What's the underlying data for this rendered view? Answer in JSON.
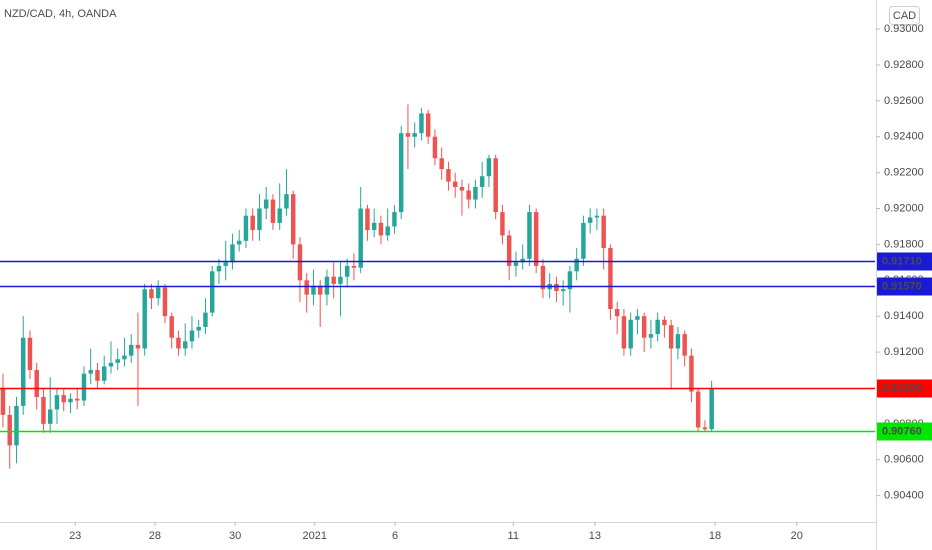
{
  "chart_data": {
    "type": "candlestick",
    "title": "NZD/CAD, 4h, OANDA",
    "currency": "CAD",
    "up_color": "#26a69a",
    "down_color": "#ef5350",
    "grid": false,
    "ylim": [
      0.90253,
      0.93162
    ],
    "yticks": [
      {
        "value": 0.904,
        "label": "0.90400"
      },
      {
        "value": 0.906,
        "label": "0.90600"
      },
      {
        "value": 0.908,
        "label": "0.90800"
      },
      {
        "value": 0.91,
        "label": "0.91000"
      },
      {
        "value": 0.912,
        "label": "0.91200"
      },
      {
        "value": 0.914,
        "label": "0.91400"
      },
      {
        "value": 0.916,
        "label": "0.91600"
      },
      {
        "value": 0.918,
        "label": "0.91800"
      },
      {
        "value": 0.92,
        "label": "0.92000"
      },
      {
        "value": 0.922,
        "label": "0.92200"
      },
      {
        "value": 0.924,
        "label": "0.92400"
      },
      {
        "value": 0.926,
        "label": "0.92600"
      },
      {
        "value": 0.928,
        "label": "0.92800"
      },
      {
        "value": 0.93,
        "label": "0.93000"
      }
    ],
    "xlim": [
      -0.44,
      129.2
    ],
    "xticks": [
      {
        "value": 10.7,
        "label": "23"
      },
      {
        "value": 22.5,
        "label": "28"
      },
      {
        "value": 34.4,
        "label": "30"
      },
      {
        "value": 46.2,
        "label": "2021"
      },
      {
        "value": 58.1,
        "label": "6"
      },
      {
        "value": 75.6,
        "label": "11"
      },
      {
        "value": 87.7,
        "label": "13"
      },
      {
        "value": 105.5,
        "label": "18"
      },
      {
        "value": 117.6,
        "label": "20"
      }
    ],
    "levels": [
      {
        "value": 0.9171,
        "label": "0.91710",
        "color": "#1a1ad6"
      },
      {
        "value": 0.9157,
        "label": "0.91570",
        "color": "#1a1ad6"
      },
      {
        "value": 0.91,
        "label": "0.91000",
        "color": "#ff0000"
      },
      {
        "value": 0.9076,
        "label": "0.90760",
        "color": "#00e600"
      }
    ],
    "candles": [
      [
        0.91,
        0.9108,
        0.9078,
        0.9085
      ],
      [
        0.9085,
        0.909,
        0.9055,
        0.9068
      ],
      [
        0.9068,
        0.9095,
        0.9058,
        0.909
      ],
      [
        0.909,
        0.914,
        0.9085,
        0.9128
      ],
      [
        0.9128,
        0.9132,
        0.9105,
        0.911
      ],
      [
        0.911,
        0.9114,
        0.9088,
        0.9095
      ],
      [
        0.9095,
        0.91,
        0.9075,
        0.908
      ],
      [
        0.908,
        0.9106,
        0.9075,
        0.9088
      ],
      [
        0.9088,
        0.91,
        0.908,
        0.9096
      ],
      [
        0.9096,
        0.91,
        0.9087,
        0.9092
      ],
      [
        0.9092,
        0.9097,
        0.9086,
        0.9094
      ],
      [
        0.9094,
        0.91,
        0.9088,
        0.9093
      ],
      [
        0.9093,
        0.9112,
        0.909,
        0.9108
      ],
      [
        0.9108,
        0.9122,
        0.9102,
        0.911
      ],
      [
        0.911,
        0.9114,
        0.91,
        0.9104
      ],
      [
        0.9104,
        0.9118,
        0.9102,
        0.9112
      ],
      [
        0.9112,
        0.9126,
        0.9108,
        0.9114
      ],
      [
        0.9114,
        0.9122,
        0.911,
        0.9116
      ],
      [
        0.9116,
        0.9128,
        0.9112,
        0.9118
      ],
      [
        0.9118,
        0.913,
        0.9114,
        0.9124
      ],
      [
        0.9124,
        0.9142,
        0.909,
        0.9122
      ],
      [
        0.9122,
        0.9158,
        0.9118,
        0.9155
      ],
      [
        0.9155,
        0.9158,
        0.9144,
        0.915
      ],
      [
        0.915,
        0.916,
        0.9146,
        0.9156
      ],
      [
        0.9156,
        0.9158,
        0.9136,
        0.914
      ],
      [
        0.914,
        0.9142,
        0.9122,
        0.9128
      ],
      [
        0.9128,
        0.9132,
        0.9118,
        0.9122
      ],
      [
        0.9122,
        0.9136,
        0.9118,
        0.9126
      ],
      [
        0.9126,
        0.914,
        0.9122,
        0.9132
      ],
      [
        0.9132,
        0.9138,
        0.9128,
        0.9134
      ],
      [
        0.9134,
        0.915,
        0.913,
        0.9142
      ],
      [
        0.9142,
        0.9168,
        0.914,
        0.9165
      ],
      [
        0.9165,
        0.9172,
        0.9158,
        0.9168
      ],
      [
        0.9168,
        0.9182,
        0.916,
        0.917
      ],
      [
        0.917,
        0.9186,
        0.9166,
        0.918
      ],
      [
        0.918,
        0.9188,
        0.9176,
        0.9182
      ],
      [
        0.9182,
        0.92,
        0.9178,
        0.9196
      ],
      [
        0.9196,
        0.92,
        0.9182,
        0.9188
      ],
      [
        0.9188,
        0.9208,
        0.9182,
        0.92
      ],
      [
        0.92,
        0.9212,
        0.9194,
        0.9205
      ],
      [
        0.9205,
        0.9208,
        0.9188,
        0.9192
      ],
      [
        0.9192,
        0.9214,
        0.9188,
        0.92
      ],
      [
        0.92,
        0.9222,
        0.9196,
        0.9208
      ],
      [
        0.9208,
        0.921,
        0.9172,
        0.918
      ],
      [
        0.918,
        0.9184,
        0.9148,
        0.916
      ],
      [
        0.916,
        0.9164,
        0.9142,
        0.9152
      ],
      [
        0.9152,
        0.9166,
        0.9146,
        0.9157
      ],
      [
        0.9157,
        0.916,
        0.9134,
        0.9152
      ],
      [
        0.9152,
        0.9166,
        0.9146,
        0.9162
      ],
      [
        0.9162,
        0.917,
        0.915,
        0.9158
      ],
      [
        0.9158,
        0.917,
        0.914,
        0.9162
      ],
      [
        0.9162,
        0.9172,
        0.9156,
        0.9168
      ],
      [
        0.9168,
        0.9175,
        0.916,
        0.9167
      ],
      [
        0.9167,
        0.9212,
        0.9164,
        0.92
      ],
      [
        0.92,
        0.9202,
        0.9182,
        0.9188
      ],
      [
        0.9188,
        0.92,
        0.9184,
        0.9192
      ],
      [
        0.9192,
        0.9196,
        0.918,
        0.9185
      ],
      [
        0.9185,
        0.92,
        0.9182,
        0.919
      ],
      [
        0.919,
        0.9202,
        0.9186,
        0.9198
      ],
      [
        0.9198,
        0.9246,
        0.9194,
        0.9242
      ],
      [
        0.9242,
        0.9258,
        0.9222,
        0.924
      ],
      [
        0.924,
        0.9248,
        0.9234,
        0.9242
      ],
      [
        0.9242,
        0.9256,
        0.9238,
        0.9253
      ],
      [
        0.9253,
        0.9255,
        0.9236,
        0.924
      ],
      [
        0.924,
        0.9244,
        0.9224,
        0.9228
      ],
      [
        0.9228,
        0.9234,
        0.9216,
        0.9222
      ],
      [
        0.9222,
        0.9226,
        0.921,
        0.9215
      ],
      [
        0.9215,
        0.922,
        0.9206,
        0.9212
      ],
      [
        0.9212,
        0.9216,
        0.9196,
        0.921
      ],
      [
        0.921,
        0.9214,
        0.92,
        0.9205
      ],
      [
        0.9205,
        0.9216,
        0.92,
        0.9212
      ],
      [
        0.9212,
        0.9226,
        0.9206,
        0.9218
      ],
      [
        0.9218,
        0.923,
        0.9212,
        0.9228
      ],
      [
        0.9228,
        0.923,
        0.9194,
        0.9198
      ],
      [
        0.9198,
        0.9202,
        0.918,
        0.9185
      ],
      [
        0.9185,
        0.9188,
        0.916,
        0.9168
      ],
      [
        0.9168,
        0.9176,
        0.9162,
        0.917
      ],
      [
        0.917,
        0.918,
        0.9166,
        0.9172
      ],
      [
        0.9172,
        0.9202,
        0.9168,
        0.9198
      ],
      [
        0.9198,
        0.92,
        0.9164,
        0.9168
      ],
      [
        0.9168,
        0.9172,
        0.915,
        0.9155
      ],
      [
        0.9155,
        0.9164,
        0.915,
        0.9158
      ],
      [
        0.9158,
        0.9162,
        0.9148,
        0.9154
      ],
      [
        0.9154,
        0.916,
        0.9146,
        0.9155
      ],
      [
        0.9155,
        0.9168,
        0.9142,
        0.9165
      ],
      [
        0.9165,
        0.9178,
        0.916,
        0.9172
      ],
      [
        0.9172,
        0.9196,
        0.9168,
        0.9192
      ],
      [
        0.9192,
        0.92,
        0.9186,
        0.9195
      ],
      [
        0.9195,
        0.92,
        0.9188,
        0.9196
      ],
      [
        0.9196,
        0.92,
        0.9166,
        0.9178
      ],
      [
        0.9178,
        0.918,
        0.9138,
        0.9144
      ],
      [
        0.9144,
        0.9148,
        0.913,
        0.914
      ],
      [
        0.914,
        0.9144,
        0.9118,
        0.9122
      ],
      [
        0.9122,
        0.9142,
        0.9118,
        0.9138
      ],
      [
        0.9138,
        0.9144,
        0.913,
        0.914
      ],
      [
        0.914,
        0.9142,
        0.912,
        0.9128
      ],
      [
        0.9128,
        0.9138,
        0.9122,
        0.913
      ],
      [
        0.913,
        0.9142,
        0.9126,
        0.9138
      ],
      [
        0.9138,
        0.914,
        0.9128,
        0.9135
      ],
      [
        0.9135,
        0.9138,
        0.91,
        0.9122
      ],
      [
        0.9122,
        0.9134,
        0.9116,
        0.913
      ],
      [
        0.913,
        0.9132,
        0.9112,
        0.9118
      ],
      [
        0.9118,
        0.9122,
        0.9092,
        0.9098
      ],
      [
        0.9098,
        0.91,
        0.9076,
        0.9078
      ],
      [
        0.9078,
        0.9082,
        0.9076,
        0.9077
      ],
      [
        0.9077,
        0.9104,
        0.9076,
        0.91
      ]
    ]
  }
}
